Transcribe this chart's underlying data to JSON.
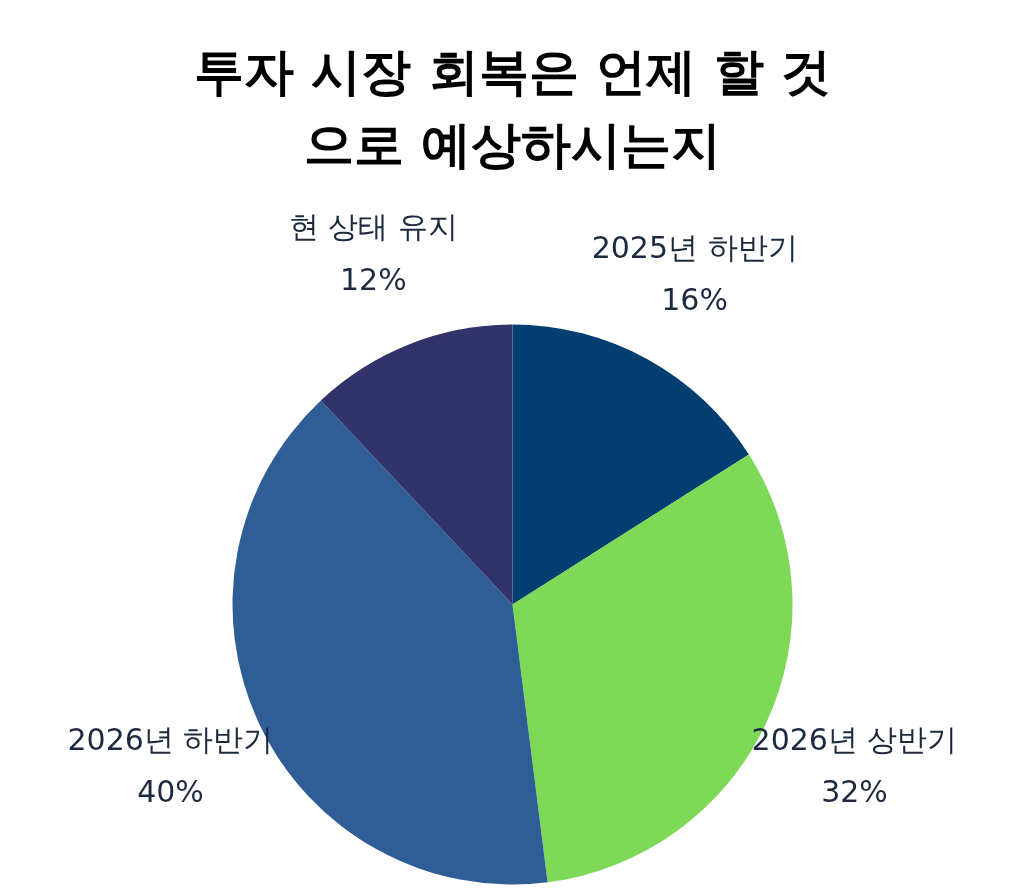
{
  "chart_data": {
    "type": "pie",
    "title": "투자 시장 회복은 언제 할 것으로 예상하시는지",
    "categories": [
      "2025년 하반기",
      "2026년 상반기",
      "2026년 하반기",
      "현 상태 유지"
    ],
    "values": [
      16,
      32,
      40,
      12
    ],
    "colors": [
      "#023e6f",
      "#7ed957",
      "#2f5e97",
      "#31336a"
    ],
    "value_labels": [
      "16%",
      "32%",
      "40%",
      "12%"
    ]
  }
}
